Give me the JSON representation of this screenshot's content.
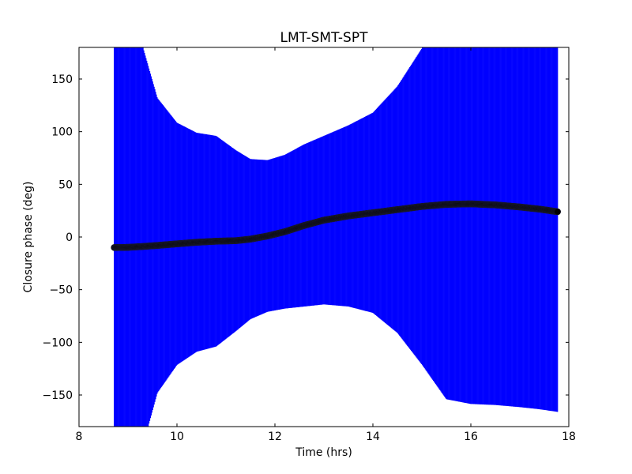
{
  "chart_data": {
    "type": "scatter",
    "title": "LMT-SMT-SPT",
    "xlabel": "Time (hrs)",
    "ylabel": "Closure phase (deg)",
    "xlim": [
      8,
      18
    ],
    "ylim": [
      -180,
      180
    ],
    "xticks": [
      8,
      10,
      12,
      14,
      16,
      18
    ],
    "yticks": [
      -150,
      -100,
      -50,
      0,
      50,
      100,
      150
    ],
    "grid": false,
    "colors": {
      "errorbar": "#0000ff",
      "points": "#000000"
    },
    "series": [
      {
        "style": "black filled circles with blue vertical error bars",
        "x": [
          8.72,
          9.0,
          9.3,
          9.6,
          10.0,
          10.4,
          10.8,
          11.2,
          11.5,
          11.85,
          12.2,
          12.6,
          13.0,
          13.5,
          14.0,
          14.5,
          15.0,
          15.5,
          16.0,
          16.5,
          17.0,
          17.4,
          17.77
        ],
        "y": [
          -10,
          -9.8,
          -9,
          -8,
          -6.5,
          -5,
          -4,
          -3.5,
          -2,
          1,
          5,
          11,
          16,
          20,
          23,
          26,
          29,
          31,
          31.5,
          30.5,
          28.5,
          26.5,
          24
        ],
        "error": [
          190,
          190,
          190,
          140,
          115,
          104,
          100,
          86,
          76,
          72,
          73,
          77,
          80,
          86,
          95,
          117,
          150,
          185,
          190,
          190,
          190,
          190,
          190
        ]
      }
    ]
  }
}
